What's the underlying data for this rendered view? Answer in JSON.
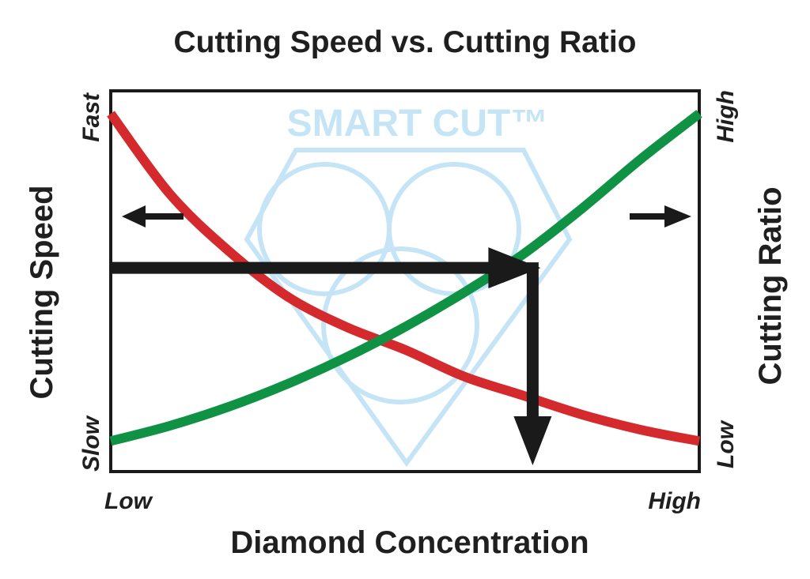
{
  "chart_data": {
    "type": "line",
    "title": "Cutting Speed vs. Cutting Ratio",
    "xlabel": "Diamond Concentration",
    "ylabel_left": "Cutting Speed",
    "ylabel_right": "Cutting Ratio",
    "x_ticks": [
      "Low",
      "High"
    ],
    "y_left_ticks": [
      "Slow",
      "Fast"
    ],
    "y_right_ticks": [
      "Low",
      "High"
    ],
    "xlim": [
      0,
      1
    ],
    "ylim": [
      0,
      1
    ],
    "grid": false,
    "series": [
      {
        "color": "#d42a2e",
        "axis": "left",
        "x": [
          0,
          0.1,
          0.2,
          0.3,
          0.4,
          0.5,
          0.6,
          0.7,
          0.8,
          0.9,
          1.0
        ],
        "y": [
          0.94,
          0.73,
          0.58,
          0.46,
          0.38,
          0.32,
          0.25,
          0.2,
          0.15,
          0.11,
          0.08
        ]
      },
      {
        "color": "#0f9244",
        "axis": "right",
        "x": [
          0,
          0.1,
          0.2,
          0.3,
          0.4,
          0.5,
          0.6,
          0.7,
          0.8,
          0.9,
          1.0
        ],
        "y": [
          0.08,
          0.12,
          0.17,
          0.23,
          0.3,
          0.38,
          0.47,
          0.57,
          0.69,
          0.82,
          0.94
        ]
      }
    ],
    "guides": {
      "horizontal_arrow_y": 0.535,
      "vertical_arrow_x": 0.725,
      "vertical_arrow_end_y": 0.0
    },
    "axis_arrows": [
      {
        "side": "left",
        "direction": "left",
        "y": 0.67
      },
      {
        "side": "right",
        "direction": "right",
        "y": 0.67
      }
    ],
    "watermark": {
      "text": "SMART CUT™",
      "color": "#c5e5f7"
    },
    "colors": {
      "speed_curve": "#d42a2e",
      "ratio_curve": "#0f9244",
      "arrows": "#1a1a1a",
      "frame": "#1a1a1a",
      "text": "#1f1f1f"
    }
  }
}
